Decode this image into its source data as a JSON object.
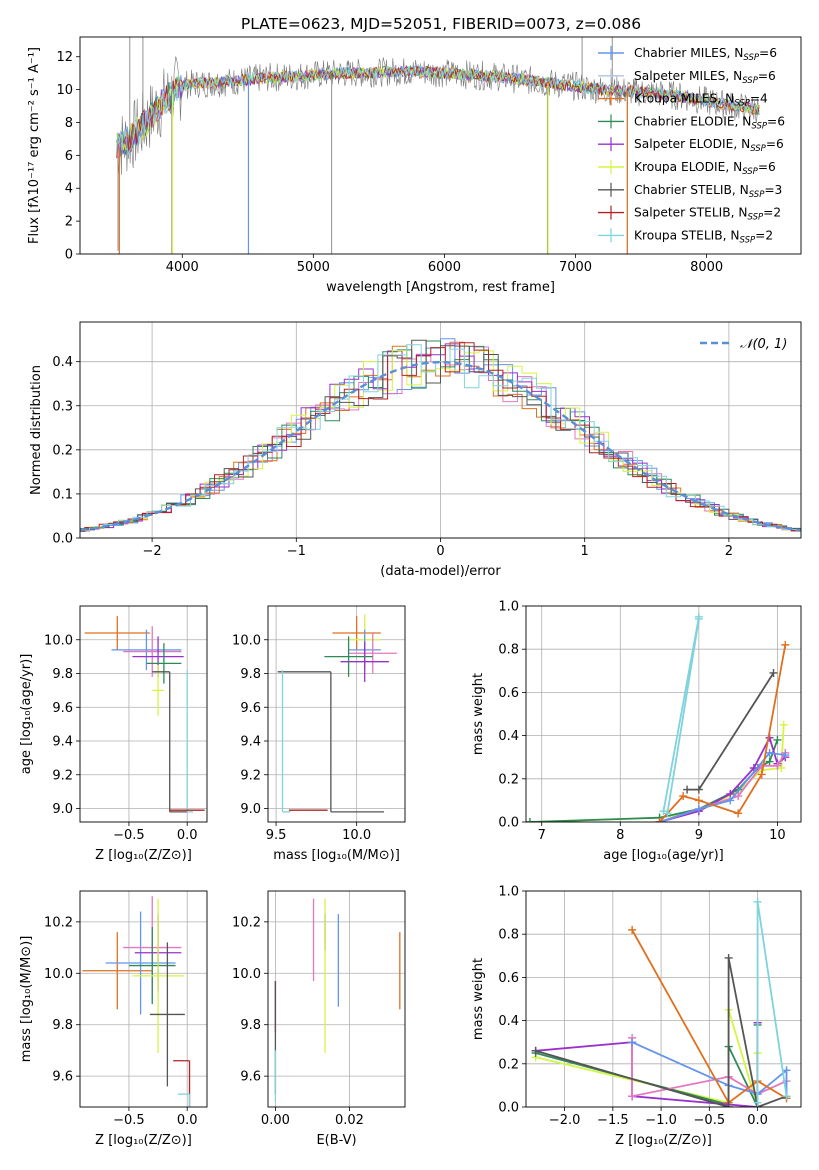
{
  "figure_title": "PLATE=0623, MJD=52051, FIBERID=0073, z=0.086",
  "colors": {
    "Chabrier MILES": "#6495ED",
    "Salpeter MILES": "#B0C4DE",
    "Kroupa MILES": "#E07020",
    "Chabrier ELODIE": "#2E8B57",
    "Salpeter ELODIE": "#9932CC",
    "Kroupa ELODIE": "#D4F542",
    "Chabrier STELIB": "#555555",
    "Salpeter STELIB": "#B22222",
    "Kroupa STELIB": "#7FD3DC",
    "pink": "#E377C2",
    "greygrid": "#b0b0b0"
  },
  "chart_data": [
    {
      "id": "spectrum",
      "type": "line",
      "title": "PLATE=0623, MJD=52051, FIBERID=0073, z=0.086",
      "xlabel": "wavelength [Angstrom, rest frame]",
      "ylabel": "Flux [fλ10⁻¹⁷ erg cm⁻² s⁻¹ A⁻¹]",
      "xlim": [
        3220,
        8720
      ],
      "ylim": [
        0,
        13.2
      ],
      "xticks": [
        4000,
        5000,
        6000,
        7000,
        8000
      ],
      "yticks": [
        0,
        2,
        4,
        6,
        8,
        10,
        12
      ],
      "grid": false,
      "legend_position": "right",
      "legend": [
        {
          "label": "Chabrier MILES, N",
          "sub": "SSP",
          "tail": "=6",
          "color": "#6495ED"
        },
        {
          "label": "Salpeter MILES, N",
          "sub": "SSP",
          "tail": "=6",
          "color": "#B0C4DE"
        },
        {
          "label": "Kroupa MILES, N",
          "sub": "SSP",
          "tail": "=4",
          "color": "#E07020"
        },
        {
          "label": "Chabrier ELODIE, N",
          "sub": "SSP",
          "tail": "=6",
          "color": "#2E8B57"
        },
        {
          "label": "Salpeter ELODIE, N",
          "sub": "SSP",
          "tail": "=6",
          "color": "#9932CC"
        },
        {
          "label": "Kroupa ELODIE, N",
          "sub": "SSP",
          "tail": "=6",
          "color": "#D4F542"
        },
        {
          "label": "Chabrier STELIB, N",
          "sub": "SSP",
          "tail": "=3",
          "color": "#555555"
        },
        {
          "label": "Salpeter STELIB, N",
          "sub": "SSP",
          "tail": "=2",
          "color": "#B22222"
        },
        {
          "label": "Kroupa STELIB, N",
          "sub": "SSP",
          "tail": "=2",
          "color": "#7FD3DC"
        }
      ],
      "continuum": {
        "x": [
          3500,
          3600,
          3700,
          3800,
          3900,
          4000,
          4200,
          4400,
          4600,
          4800,
          5000,
          5200,
          5400,
          5600,
          5800,
          6000,
          6200,
          6400,
          6600,
          6800,
          7000,
          7200,
          7400,
          7600,
          7800,
          8000,
          8200,
          8400
        ],
        "y": [
          6.5,
          7.0,
          7.8,
          8.8,
          9.6,
          10.3,
          10.4,
          10.5,
          10.7,
          10.8,
          10.9,
          11.0,
          11.0,
          11.1,
          11.1,
          11.0,
          10.9,
          10.8,
          10.6,
          10.4,
          10.2,
          10.0,
          9.9,
          9.8,
          9.6,
          9.3,
          9.0,
          8.8
        ]
      },
      "spikes": [
        {
          "x": 3510,
          "y": 0.2
        },
        {
          "x": 3920,
          "y": 0.0
        },
        {
          "x": 4505,
          "y": 0.0
        },
        {
          "x": 5140,
          "y": 0.0
        },
        {
          "x": 6785,
          "y": 0.0
        },
        {
          "x": 7395,
          "y": 0.0
        },
        {
          "x": 3600,
          "y": 13.2
        },
        {
          "x": 3700,
          "y": 13.2
        },
        {
          "x": 7050,
          "y": 13.2
        },
        {
          "x": 7280,
          "y": 13.2
        }
      ]
    },
    {
      "id": "residuals",
      "type": "bar",
      "xlabel": "(data-model)/error",
      "ylabel": "Normed distribution",
      "xlim": [
        -2.5,
        2.5
      ],
      "ylim": [
        0,
        0.49
      ],
      "xticks": [
        -2,
        -1,
        0,
        1,
        2
      ],
      "yticks": [
        0.0,
        0.1,
        0.2,
        0.3,
        0.4
      ],
      "grid": true,
      "legend": [
        {
          "label": "𝒩(0, 1)",
          "color": "#5A8FD8",
          "style": "dashed"
        }
      ],
      "legend_position": "top-right",
      "gaussian": {
        "mean": 0,
        "sigma": 1
      },
      "bin_width": 0.1,
      "n_histograms": 9
    },
    {
      "id": "age-vs-Z",
      "type": "scatter",
      "xlabel": "Z [log₁₀(Z/Z⊙)]",
      "ylabel": "age  [log₁₀(age/yr)]",
      "xlim": [
        -0.92,
        0.17
      ],
      "ylim": [
        8.92,
        10.2
      ],
      "xticks": [
        -0.5,
        0.0
      ],
      "yticks": [
        9.0,
        9.2,
        9.4,
        9.6,
        9.8,
        10.0
      ],
      "grid": true,
      "points": [
        {
          "x": -0.6,
          "y": 10.04,
          "xerr": 0.28,
          "yerr": 0.1,
          "color": "#E07020"
        },
        {
          "x": -0.35,
          "y": 9.94,
          "xerr": 0.3,
          "yerr": 0.12,
          "color": "#6495ED"
        },
        {
          "x": -0.3,
          "y": 9.93,
          "xerr": 0.25,
          "yerr": 0.15,
          "color": "#E377C2"
        },
        {
          "x": -0.25,
          "y": 9.9,
          "xerr": 0.22,
          "yerr": 0.12,
          "color": "#9932CC"
        },
        {
          "x": -0.25,
          "y": 9.7,
          "xerr": 0.05,
          "yerr": 0.15,
          "color": "#D4F542"
        },
        {
          "x": -0.2,
          "y": 9.86,
          "xerr": 0.15,
          "yerr": 0.12,
          "color": "#2E8B57"
        },
        {
          "x": -0.15,
          "y": 9.81,
          "xerr": 0.15,
          "yerr": 0.83,
          "color": "#555555",
          "half": true
        },
        {
          "x": 0.0,
          "y": 9.82,
          "xerr": 0.0,
          "yerr": 0.84,
          "color": "#7FD3DC",
          "half": true
        },
        {
          "x": 0.0,
          "y": 8.99,
          "xerr": 0.15,
          "yerr": 0.0,
          "color": "#B22222"
        }
      ]
    },
    {
      "id": "age-vs-mass",
      "type": "scatter",
      "xlabel": "mass [log₁₀(M/M⊙)]",
      "ylabel": "",
      "xlim": [
        9.45,
        10.3
      ],
      "ylim": [
        8.92,
        10.2
      ],
      "xticks": [
        9.5,
        10.0
      ],
      "yticks": [
        9.0,
        9.2,
        9.4,
        9.6,
        9.8,
        10.0
      ],
      "grid": true,
      "points": [
        {
          "x": 10.0,
          "y": 10.04,
          "xerr": 0.15,
          "yerr": 0.1,
          "color": "#E07020"
        },
        {
          "x": 10.05,
          "y": 10.0,
          "xerr": 0.1,
          "yerr": 0.15,
          "color": "#D4F542"
        },
        {
          "x": 10.05,
          "y": 9.94,
          "xerr": 0.1,
          "yerr": 0.12,
          "color": "#6495ED"
        },
        {
          "x": 10.1,
          "y": 9.92,
          "xerr": 0.15,
          "yerr": 0.12,
          "color": "#E377C2"
        },
        {
          "x": 10.05,
          "y": 9.87,
          "xerr": 0.15,
          "yerr": 0.12,
          "color": "#9932CC"
        },
        {
          "x": 9.95,
          "y": 9.9,
          "xerr": 0.15,
          "yerr": 0.12,
          "color": "#2E8B57"
        },
        {
          "x": 9.84,
          "y": 9.81,
          "xerr": 0.33,
          "yerr": 0.83,
          "color": "#555555",
          "half": true
        },
        {
          "x": 9.54,
          "y": 9.82,
          "xerr": 0.0,
          "yerr": 0.84,
          "color": "#7FD3DC",
          "half": true
        },
        {
          "x": 9.7,
          "y": 8.99,
          "xerr": 0.12,
          "yerr": 0.0,
          "color": "#B22222"
        }
      ]
    },
    {
      "id": "massweight-vs-age",
      "type": "line",
      "xlabel": "age  [log₁₀(age/yr)]",
      "ylabel": "mass weight",
      "xlim": [
        6.8,
        10.3
      ],
      "ylim": [
        0,
        1.0
      ],
      "xticks": [
        7,
        8,
        9,
        10
      ],
      "yticks": [
        0.0,
        0.2,
        0.4,
        0.6,
        0.8,
        1.0
      ],
      "grid": true,
      "series": [
        {
          "color": "#D4F542",
          "x": [
            6.85,
            8.5,
            9.0,
            9.5,
            9.8,
            10.05,
            10.08
          ],
          "y": [
            0.0,
            0.02,
            0.05,
            0.14,
            0.24,
            0.25,
            0.45
          ]
        },
        {
          "color": "#2E8B57",
          "x": [
            6.85,
            8.5,
            9.0,
            9.5,
            9.75,
            9.9,
            10.0
          ],
          "y": [
            0.0,
            0.02,
            0.06,
            0.15,
            0.25,
            0.28,
            0.38
          ]
        },
        {
          "color": "#9932CC",
          "x": [
            8.5,
            9.0,
            9.4,
            9.7,
            9.9,
            10.0,
            10.1
          ],
          "y": [
            0.0,
            0.05,
            0.13,
            0.25,
            0.39,
            0.27,
            0.3
          ]
        },
        {
          "color": "#E377C2",
          "x": [
            8.5,
            9.0,
            9.5,
            9.8,
            10.0,
            10.1
          ],
          "y": [
            0.0,
            0.06,
            0.12,
            0.26,
            0.26,
            0.32
          ]
        },
        {
          "color": "#6495ED",
          "x": [
            8.5,
            9.0,
            9.4,
            9.9,
            10.1
          ],
          "y": [
            0.0,
            0.06,
            0.1,
            0.32,
            0.31
          ]
        },
        {
          "color": "#E07020",
          "x": [
            8.5,
            8.8,
            9.0,
            9.5,
            9.8,
            10.1
          ],
          "y": [
            0.0,
            0.12,
            0.1,
            0.04,
            0.22,
            0.82
          ]
        },
        {
          "color": "#555555",
          "x": [
            8.85,
            9.0,
            9.95
          ],
          "y": [
            0.15,
            0.15,
            0.69
          ]
        },
        {
          "color": "#7FD3DC",
          "x": [
            8.55,
            9.0
          ],
          "y": [
            0.05,
            0.95
          ]
        },
        {
          "color": "#7FD3DC",
          "x": [
            8.6,
            9.0
          ],
          "y": [
            0.04,
            0.94
          ]
        }
      ]
    },
    {
      "id": "mass-vs-Z",
      "type": "scatter",
      "xlabel": "Z [log₁₀(Z/Z⊙)]",
      "ylabel": "mass [log₁₀(M/M⊙)]",
      "xlim": [
        -0.92,
        0.17
      ],
      "ylim": [
        9.48,
        10.32
      ],
      "xticks": [
        -0.5,
        0.0
      ],
      "yticks": [
        9.6,
        9.8,
        10.0,
        10.2
      ],
      "grid": true,
      "points": [
        {
          "x": -0.6,
          "y": 10.01,
          "xerr": 0.3,
          "yerr": 0.15,
          "color": "#E07020"
        },
        {
          "x": -0.4,
          "y": 10.04,
          "xerr": 0.3,
          "yerr": 0.2,
          "color": "#6495ED"
        },
        {
          "x": -0.3,
          "y": 10.1,
          "xerr": 0.25,
          "yerr": 0.2,
          "color": "#E377C2"
        },
        {
          "x": -0.3,
          "y": 10.03,
          "xerr": 0.2,
          "yerr": 0.15,
          "color": "#2E8B57"
        },
        {
          "x": -0.25,
          "y": 10.08,
          "xerr": 0.2,
          "yerr": 0.15,
          "color": "#9932CC"
        },
        {
          "x": -0.25,
          "y": 9.99,
          "xerr": 0.22,
          "yerr": 0.3,
          "color": "#D4F542"
        },
        {
          "x": -0.17,
          "y": 9.84,
          "xerr": 0.15,
          "yerr": 0.28,
          "color": "#555555"
        },
        {
          "x": 0.02,
          "y": 9.66,
          "xerr": 0.14,
          "yerr": 0.2,
          "color": "#B22222",
          "half": true
        },
        {
          "x": 0.02,
          "y": 9.53,
          "xerr": 0.1,
          "yerr": 0.1,
          "color": "#7FD3DC",
          "half": true
        }
      ]
    },
    {
      "id": "mass-vs-EBV",
      "type": "scatter",
      "xlabel": "E(B-V)",
      "ylabel": "",
      "xlim": [
        -0.002,
        0.035
      ],
      "ylim": [
        9.48,
        10.32
      ],
      "xticks": [
        0.0,
        0.02
      ],
      "yticks": [
        9.6,
        9.8,
        10.0,
        10.2
      ],
      "grid": true,
      "points": [
        {
          "x": 0.0,
          "y": 9.87,
          "xerr": 0,
          "yerr": 0.1,
          "color": "#B22222"
        },
        {
          "x": 0.0,
          "y": 9.75,
          "xerr": 0,
          "yerr": 0.22,
          "color": "#555555"
        },
        {
          "x": 0.0,
          "y": 9.6,
          "xerr": 0,
          "yerr": 0.1,
          "color": "#7FD3DC"
        },
        {
          "x": 0.0103,
          "y": 10.13,
          "xerr": 0,
          "yerr": 0.16,
          "color": "#E377C2"
        },
        {
          "x": 0.0134,
          "y": 10.16,
          "xerr": 0,
          "yerr": 0.07,
          "color": "#9932CC"
        },
        {
          "x": 0.0134,
          "y": 9.99,
          "xerr": 0,
          "yerr": 0.3,
          "color": "#D4F542"
        },
        {
          "x": 0.017,
          "y": 10.05,
          "xerr": 0,
          "yerr": 0.18,
          "color": "#6495ED"
        },
        {
          "x": 0.0336,
          "y": 10.01,
          "xerr": 0,
          "yerr": 0.15,
          "color": "#E07020"
        }
      ]
    },
    {
      "id": "massweight-vs-Z",
      "type": "line",
      "xlabel": "Z [log₁₀(Z/Z⊙)]",
      "ylabel": "mass weight",
      "xlim": [
        -2.4,
        0.45
      ],
      "ylim": [
        0,
        1.0
      ],
      "xticks": [
        -2.0,
        -1.5,
        -1.0,
        -0.5,
        0.0
      ],
      "yticks": [
        0.0,
        0.2,
        0.4,
        0.6,
        0.8,
        1.0
      ],
      "grid": true,
      "series": [
        {
          "color": "#D4F542",
          "x": [
            -2.3,
            -0.3,
            -0.3,
            0.0,
            0.0
          ],
          "y": [
            0.23,
            0.02,
            0.45,
            0.0,
            0.25
          ]
        },
        {
          "color": "#2E8B57",
          "x": [
            -2.3,
            -0.3,
            -0.3,
            0.0,
            0.0
          ],
          "y": [
            0.25,
            0.01,
            0.28,
            0.0,
            0.38
          ]
        },
        {
          "color": "#9932CC",
          "x": [
            -2.3,
            -1.3,
            -1.3,
            0.0,
            0.0
          ],
          "y": [
            0.26,
            0.3,
            0.05,
            0.0,
            0.39
          ]
        },
        {
          "color": "#E377C2",
          "x": [
            -1.3,
            -1.3,
            -0.3,
            0.0,
            0.3
          ],
          "y": [
            0.32,
            0.05,
            0.14,
            0.06,
            0.12
          ]
        },
        {
          "color": "#6495ED",
          "x": [
            -1.3,
            -0.3,
            0.0,
            0.3,
            0.3
          ],
          "y": [
            0.3,
            0.1,
            0.06,
            0.17,
            0.05
          ]
        },
        {
          "color": "#E07020",
          "x": [
            -1.3,
            -0.3,
            0.0,
            0.3
          ],
          "y": [
            0.82,
            0.02,
            0.12,
            0.04
          ]
        },
        {
          "color": "#555555",
          "x": [
            -2.3,
            -0.3,
            -0.3,
            0.0,
            0.3
          ],
          "y": [
            0.26,
            0.0,
            0.69,
            0.0,
            0.05
          ]
        },
        {
          "color": "#7FD3DC",
          "x": [
            0.0,
            0.0,
            0.3
          ],
          "y": [
            0.02,
            0.95,
            0.05
          ]
        }
      ]
    }
  ]
}
